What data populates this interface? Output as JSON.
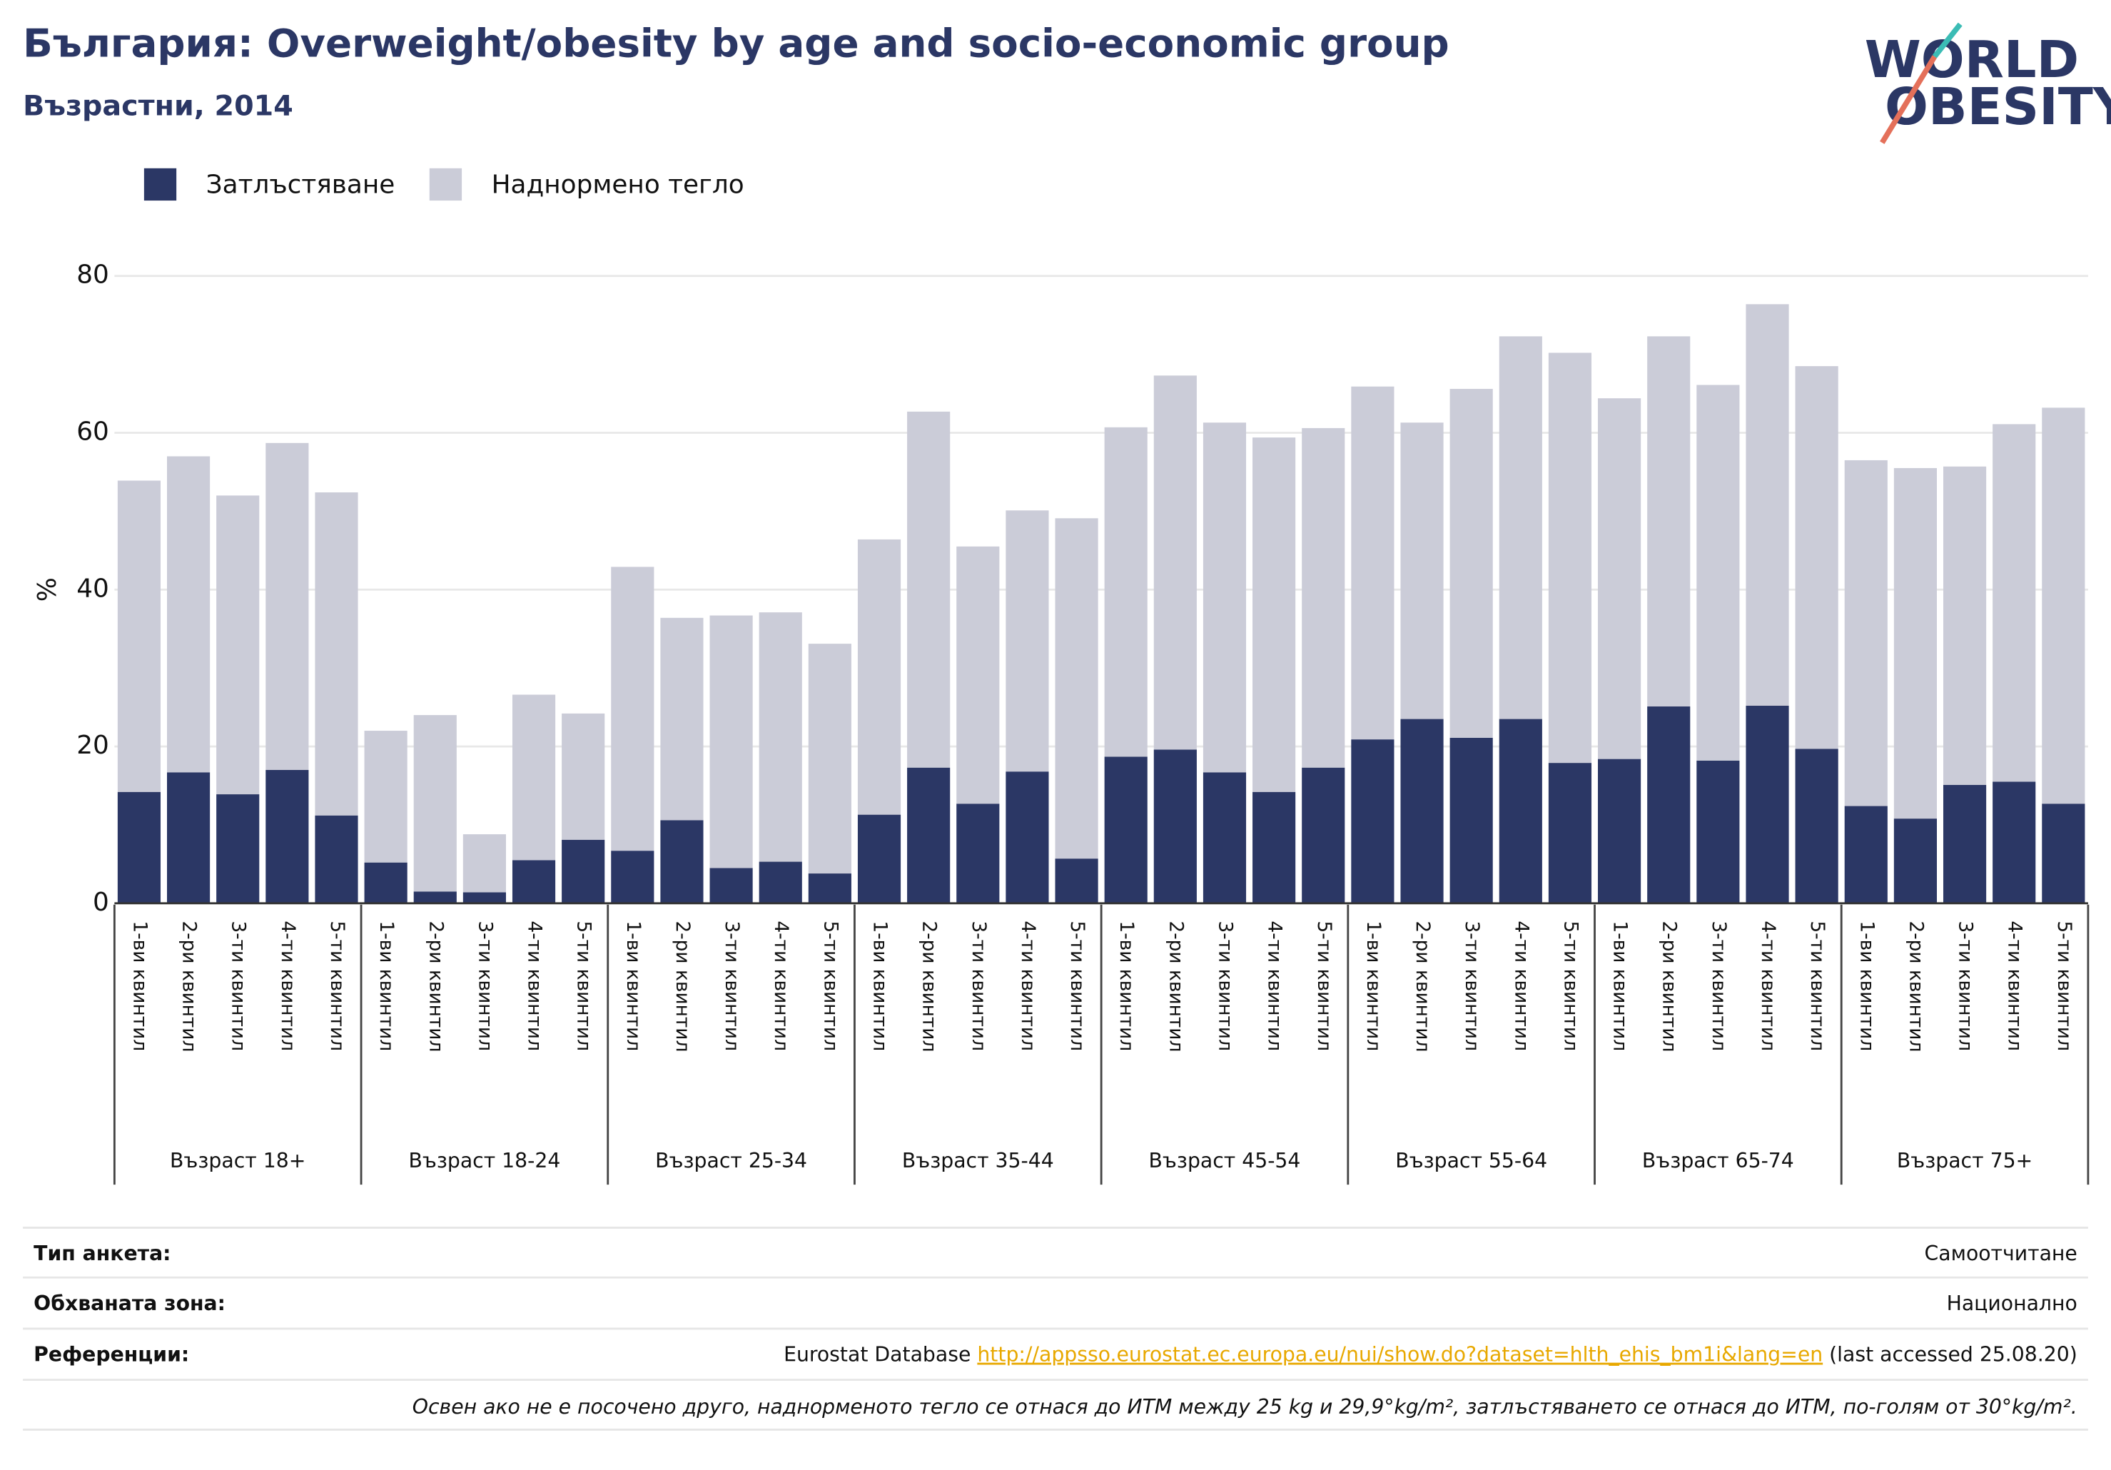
{
  "chart_data": {
    "type": "bar",
    "stacked": true,
    "title": "България: Overweight/obesity by age and socio-economic group",
    "subtitle": "Възрастни, 2014",
    "y_label": "%",
    "logo": [
      "WORLD",
      "OBESITY"
    ],
    "categories": [
      "1-ви квинтил",
      "2-ри квинтил",
      "3-ти квинтил",
      "4-ти квинтил",
      "5-ти квинтил",
      "1-ви квинтил",
      "2-ри квинтил",
      "3-ти квинтил",
      "4-ти квинтил",
      "5-ти квинтил",
      "1-ви квинтил",
      "2-ри квинтил",
      "3-ти квинтил",
      "4-ти квинтил",
      "5-ти квинтил",
      "1-ви квинтил",
      "2-ри квинтил",
      "3-ти квинтил",
      "4-ти квинтил",
      "5-ти квинтил",
      "1-ви квинтил",
      "2-ри квинтил",
      "3-ти квинтил",
      "4-ти квинтил",
      "5-ти квинтил",
      "1-ви квинтил",
      "2-ри квинтил",
      "3-ти квинтил",
      "4-ти квинтил",
      "5-ти квинтил",
      "1-ви квинтил",
      "2-ри квинтил",
      "3-ти квинтил",
      "4-ти квинтил",
      "5-ти квинтил",
      "1-ви квинтил",
      "2-ри квинтил",
      "3-ти квинтил",
      "4-ти квинтил",
      "5-ти квинтил"
    ],
    "groups": [
      "Възраст 18+",
      "Възраст 18-24",
      "Възраст 25-34",
      "Възраст 35-44",
      "Възраст 45-54",
      "Възраст 55-64",
      "Възраст 65-74",
      "Възраст 75+"
    ],
    "series": [
      {
        "name": "Затлъстяване",
        "color": "#2b3765",
        "values": [
          14.2,
          16.7,
          13.9,
          17,
          11.2,
          5.2,
          1.5,
          1.4,
          5.5,
          8.1,
          6.7,
          10.6,
          4.5,
          5.3,
          3.8,
          11.3,
          17.3,
          12.7,
          16.8,
          5.7,
          18.7,
          19.6,
          16.7,
          14.2,
          17.3,
          20.9,
          23.5,
          21.1,
          23.5,
          17.9,
          18.4,
          25.1,
          18.2,
          25.2,
          19.7,
          12.4,
          10.8,
          15.1,
          15.5,
          12.7
        ]
      },
      {
        "name": "Наднормено тегло",
        "color": "#cbccd8",
        "values": [
          39.7,
          40.3,
          38.1,
          41.7,
          41.2,
          16.8,
          22.5,
          7.4,
          21.1,
          16.1,
          36.2,
          25.8,
          32.2,
          31.8,
          29.3,
          35.1,
          45.4,
          32.8,
          33.3,
          43.4,
          42,
          47.7,
          44.6,
          45.2,
          43.3,
          45,
          37.8,
          44.5,
          48.8,
          52.3,
          46,
          47.2,
          47.9,
          51.2,
          48.8,
          44.1,
          44.7,
          40.6,
          45.6,
          50.5
        ]
      }
    ],
    "ylim": [
      0,
      80
    ],
    "yticks": [
      0,
      20,
      40,
      60,
      80
    ],
    "grid": true,
    "legend": "top-left"
  },
  "footer": {
    "rows": [
      {
        "label": "Тип анкета:",
        "value": "Самоотчитане"
      },
      {
        "label": "Обхваната зона:",
        "value": "Национално"
      },
      {
        "label": "Референции:",
        "value": "Eurostat Database",
        "link": "http://appsso.eurostat.ec.europa.eu/nui/show.do?dataset=hlth_ehis_bm1i&lang=en",
        "suffix": "(last accessed 25.08.20)"
      }
    ],
    "note": "Освен ако не е посочено друго, наднорменото тегло се отнася до ИТМ между 25 kg и 29,9°kg/m², затлъстяването се отнася до ИТМ, по-голям от 30°kg/m²."
  }
}
